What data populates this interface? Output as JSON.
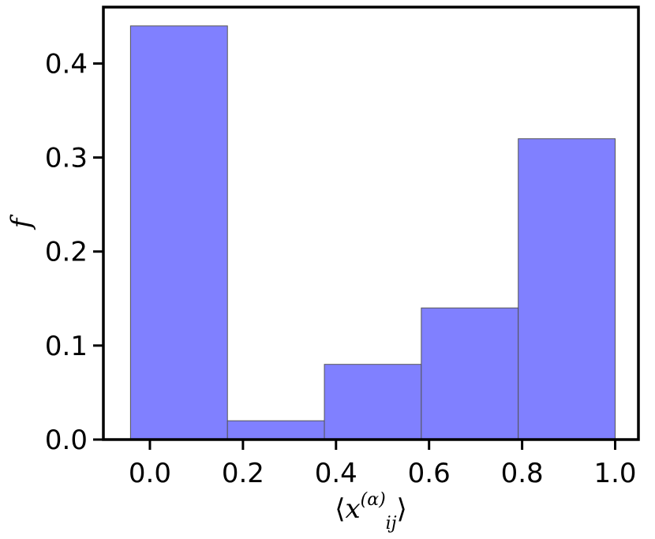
{
  "chart_data": {
    "type": "bar",
    "bins": [
      {
        "x0": -0.0417,
        "x1": 0.1667,
        "value": 0.44
      },
      {
        "x0": 0.1667,
        "x1": 0.375,
        "value": 0.02
      },
      {
        "x0": 0.375,
        "x1": 0.5833,
        "value": 0.08
      },
      {
        "x0": 0.5833,
        "x1": 0.7917,
        "value": 0.14
      },
      {
        "x0": 0.7917,
        "x1": 1.0,
        "value": 0.32
      }
    ],
    "xlim": [
      -0.1,
      1.05
    ],
    "ylim": [
      0,
      0.46
    ],
    "xticks": [
      0.0,
      0.2,
      0.4,
      0.6,
      0.8,
      1.0
    ],
    "xtick_labels": [
      "0.0",
      "0.2",
      "0.4",
      "0.6",
      "0.8",
      "1.0"
    ],
    "yticks": [
      0.0,
      0.1,
      0.2,
      0.3,
      0.4
    ],
    "ytick_labels": [
      "0.0",
      "0.1",
      "0.2",
      "0.3",
      "0.4"
    ],
    "xlabel": {
      "open": "⟨",
      "var": "x",
      "sub": "ij",
      "sup": "(α)",
      "close": "⟩"
    },
    "ylabel": "f",
    "colors": {
      "bar_fill": "#8080ff",
      "bar_edge": "#555555",
      "axes": "#000000"
    },
    "grid": false
  }
}
